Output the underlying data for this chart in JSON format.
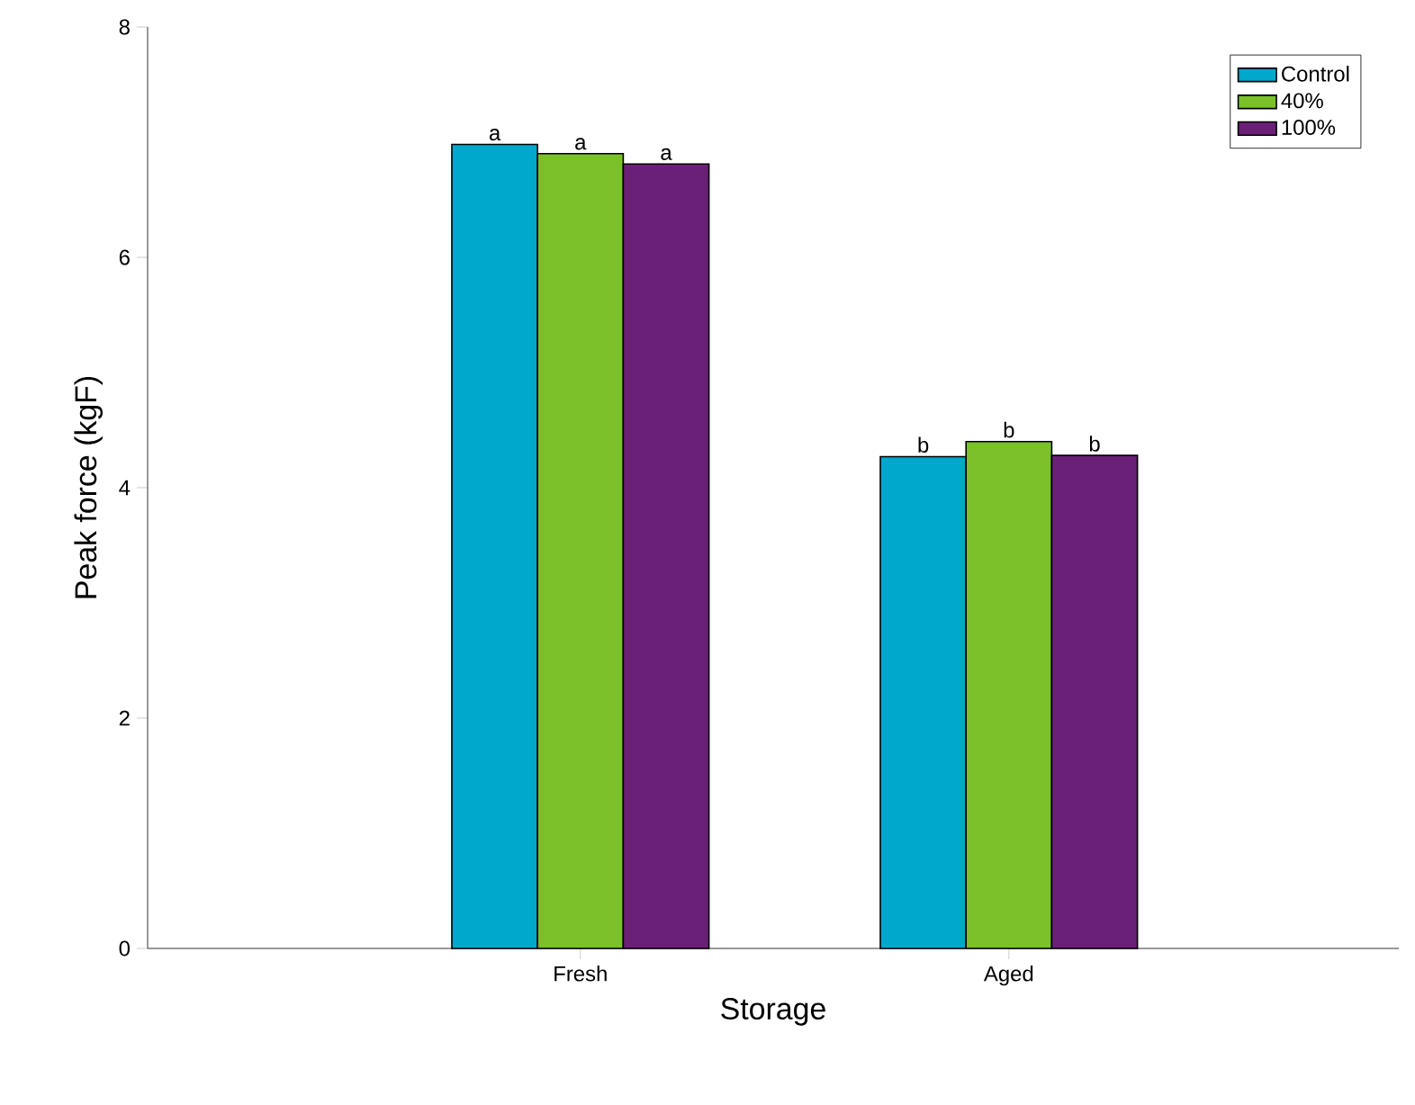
{
  "chart_data": {
    "type": "bar",
    "xlabel": "Storage",
    "ylabel": "Peak force (kgF)",
    "categories": [
      "Fresh",
      "Aged"
    ],
    "series": [
      {
        "name": "Control",
        "color": "#00a8cc",
        "values": [
          6.98,
          4.27
        ],
        "value_labels": [
          "a",
          "b"
        ]
      },
      {
        "name": "40%",
        "color": "#7ac12a",
        "values": [
          6.9,
          4.4
        ],
        "value_labels": [
          "a",
          "b"
        ]
      },
      {
        "name": "100%",
        "color": "#6b2077",
        "values": [
          6.81,
          4.28
        ],
        "value_labels": [
          "a",
          "b"
        ]
      }
    ],
    "ylim": [
      0,
      8
    ],
    "yticks": [
      0,
      2,
      4,
      6,
      8
    ],
    "legend": "top right"
  }
}
